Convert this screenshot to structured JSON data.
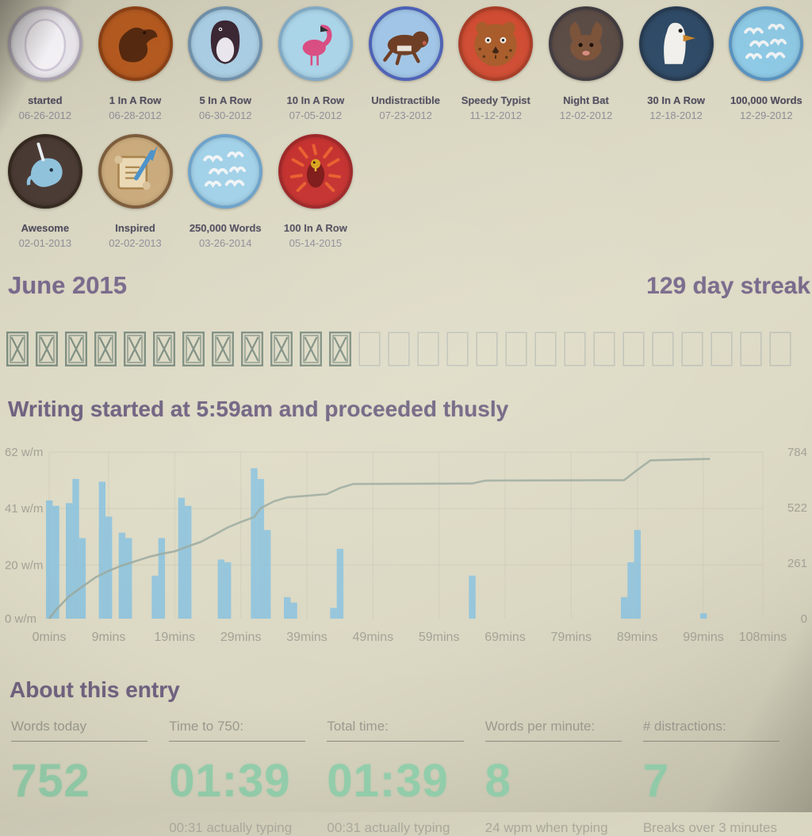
{
  "badges": {
    "rows": [
      [
        {
          "label": "started",
          "date": "06-26-2012",
          "bg": "#e9e7ec",
          "ring": "#a9a2b0",
          "icon": "egg"
        },
        {
          "label": "1 In A Row",
          "date": "06-28-2012",
          "bg": "#b3591f",
          "ring": "#8a3f14",
          "icon": "bird-dark"
        },
        {
          "label": "5 In A Row",
          "date": "06-30-2012",
          "bg": "#a8cce2",
          "ring": "#6f8fa8",
          "icon": "penguin"
        },
        {
          "label": "10 In A Row",
          "date": "07-05-2012",
          "bg": "#a9d3e8",
          "ring": "#7fa8c4",
          "icon": "flamingo"
        },
        {
          "label": "Undistractible",
          "date": "07-23-2012",
          "bg": "#9fc4e6",
          "ring": "#4a5fb5",
          "icon": "dog"
        },
        {
          "label": "Speedy Typist",
          "date": "11-12-2012",
          "bg": "#cf4a30",
          "ring": "#a83a24",
          "icon": "cheetah"
        },
        {
          "label": "Night Bat",
          "date": "12-02-2012",
          "bg": "#5a4a44",
          "ring": "#3f3a3e",
          "icon": "bat"
        },
        {
          "label": "30 In A Row",
          "date": "12-18-2012",
          "bg": "#2f4a66",
          "ring": "#263a50",
          "icon": "albatross"
        },
        {
          "label": "100,000 Words",
          "date": "12-29-2012",
          "bg": "#8ecae6",
          "ring": "#5a93c0",
          "icon": "flock"
        }
      ],
      [
        {
          "label": "Awesome",
          "date": "02-01-2013",
          "bg": "#4a3a34",
          "ring": "#35291f",
          "icon": "narwhal"
        },
        {
          "label": "Inspired",
          "date": "02-02-2013",
          "bg": "#c9a97a",
          "ring": "#7a5a38",
          "icon": "scroll"
        },
        {
          "label": "250,000 Words",
          "date": "03-26-2014",
          "bg": "#9fd0e8",
          "ring": "#6aa0c8",
          "icon": "flock"
        },
        {
          "label": "100 In A Row",
          "date": "05-14-2015",
          "bg": "#c32a28",
          "ring": "#9a1f20",
          "icon": "phoenix"
        }
      ]
    ]
  },
  "month": {
    "title": "June 2015",
    "streak": "129 day streak"
  },
  "calendar": {
    "total_boxes": 27,
    "checked_boxes": 12,
    "checked_color": "#7d8d80",
    "unchecked_color": "#bcbfb6"
  },
  "chart_heading": "Writing started at 5:59am and proceeded thusly",
  "chart_data": {
    "type": "bar",
    "title": "Writing started at 5:59am and proceeded thusly",
    "bar_series_name": "words per minute (w/m)",
    "line_series_name": "cumulative words",
    "left_axis": {
      "max": 62,
      "ticks": [
        {
          "v": 62,
          "label": "62 w/m"
        },
        {
          "v": 41,
          "label": "41 w/m"
        },
        {
          "v": 20,
          "label": "20 w/m"
        },
        {
          "v": 0,
          "label": "0 w/m"
        }
      ]
    },
    "right_axis": {
      "max": 784,
      "ticks": [
        {
          "v": 784,
          "label": "784"
        },
        {
          "v": 522,
          "label": "522"
        },
        {
          "v": 261,
          "label": "261"
        },
        {
          "v": 0,
          "label": "0"
        }
      ]
    },
    "x_total_minutes": 108,
    "x_ticks": [
      {
        "m": 0,
        "label": "0mins"
      },
      {
        "m": 9,
        "label": "9mins"
      },
      {
        "m": 19,
        "label": "19mins"
      },
      {
        "m": 29,
        "label": "29mins"
      },
      {
        "m": 39,
        "label": "39mins"
      },
      {
        "m": 49,
        "label": "49mins"
      },
      {
        "m": 59,
        "label": "59mins"
      },
      {
        "m": 69,
        "label": "69mins"
      },
      {
        "m": 79,
        "label": "79mins"
      },
      {
        "m": 89,
        "label": "89mins"
      },
      {
        "m": 99,
        "label": "99mins"
      },
      {
        "m": 108,
        "label": "108mins"
      }
    ],
    "bars_wpm": [
      [
        0,
        44
      ],
      [
        1,
        42
      ],
      [
        3,
        43
      ],
      [
        4,
        52
      ],
      [
        5,
        30
      ],
      [
        8,
        51
      ],
      [
        9,
        38
      ],
      [
        11,
        32
      ],
      [
        12,
        30
      ],
      [
        16,
        16
      ],
      [
        17,
        30
      ],
      [
        20,
        45
      ],
      [
        21,
        42
      ],
      [
        26,
        22
      ],
      [
        27,
        21
      ],
      [
        31,
        56
      ],
      [
        32,
        52
      ],
      [
        33,
        33
      ],
      [
        36,
        8
      ],
      [
        37,
        6
      ],
      [
        43,
        4
      ],
      [
        44,
        26
      ],
      [
        64,
        16
      ],
      [
        87,
        8
      ],
      [
        88,
        21
      ],
      [
        89,
        33
      ],
      [
        99,
        2
      ]
    ],
    "line_words": [
      [
        0,
        0
      ],
      [
        1,
        40
      ],
      [
        3,
        105
      ],
      [
        5,
        150
      ],
      [
        7,
        194
      ],
      [
        9,
        225
      ],
      [
        11,
        250
      ],
      [
        13,
        270
      ],
      [
        15,
        290
      ],
      [
        17,
        305
      ],
      [
        19,
        317
      ],
      [
        21,
        340
      ],
      [
        23,
        362
      ],
      [
        25,
        395
      ],
      [
        27,
        429
      ],
      [
        29,
        455
      ],
      [
        31,
        478
      ],
      [
        32,
        520
      ],
      [
        34,
        552
      ],
      [
        36,
        571
      ],
      [
        42,
        586
      ],
      [
        44,
        615
      ],
      [
        46,
        634
      ],
      [
        64,
        636
      ],
      [
        66,
        650
      ],
      [
        87,
        652
      ],
      [
        89,
        700
      ],
      [
        91,
        745
      ],
      [
        100,
        752
      ]
    ],
    "bar_color": "#8ac2de",
    "line_color": "#9aa89e",
    "grid_color": "#c4c2ae",
    "axis_text_color": "#a3a196"
  },
  "entry": {
    "heading": "About this entry",
    "stats": [
      {
        "label": "Words today",
        "value": "752",
        "sub": ""
      },
      {
        "label": "Time to 750:",
        "value": "01:39",
        "sub": "00:31 actually typing"
      },
      {
        "label": "Total time:",
        "value": "01:39",
        "sub": "00:31 actually typing"
      },
      {
        "label": "Words per minute:",
        "value": "8",
        "sub": "24 wpm when typing"
      },
      {
        "label": "# distractions:",
        "value": "7",
        "sub": "Breaks over 3 minutes"
      }
    ]
  }
}
